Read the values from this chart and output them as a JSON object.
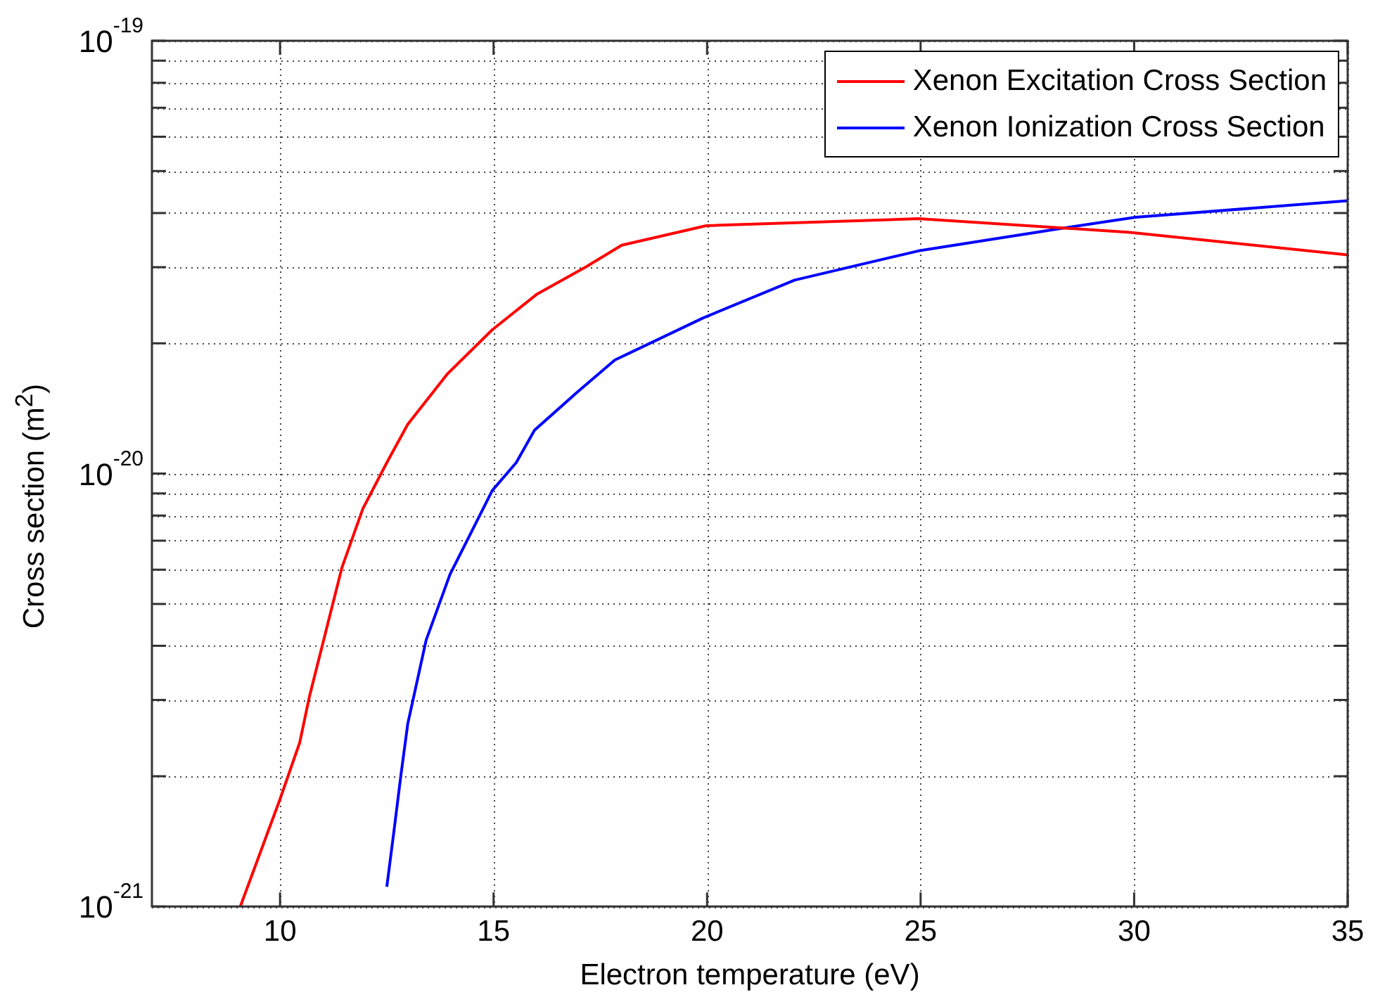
{
  "chart_data": {
    "type": "line",
    "xlabel": "Electron temperature (eV)",
    "ylabel": "Cross section (m$^{2}$)",
    "xlim": [
      7,
      35
    ],
    "xticks": [
      10,
      15,
      20,
      25,
      30,
      35
    ],
    "ylim": [
      1e-21,
      1e-19
    ],
    "yticks": [
      {
        "value": 1e-21,
        "label": "10$^{-21}$"
      },
      {
        "value": 2e-21,
        "label": null
      },
      {
        "value": 3e-21,
        "label": null
      },
      {
        "value": 4e-21,
        "label": null
      },
      {
        "value": 5e-21,
        "label": null
      },
      {
        "value": 6e-21,
        "label": null
      },
      {
        "value": 7e-21,
        "label": null
      },
      {
        "value": 8e-21,
        "label": null
      },
      {
        "value": 9e-21,
        "label": null
      },
      {
        "value": 1e-20,
        "label": "10$^{-20}$"
      },
      {
        "value": 2e-20,
        "label": null
      },
      {
        "value": 3e-20,
        "label": null
      },
      {
        "value": 4e-20,
        "label": null
      },
      {
        "value": 5e-20,
        "label": null
      },
      {
        "value": 6e-20,
        "label": null
      },
      {
        "value": 7e-20,
        "label": null
      },
      {
        "value": 8e-20,
        "label": null
      },
      {
        "value": 9e-20,
        "label": null
      },
      {
        "value": 1e-19,
        "label": "10$^{-19}$"
      }
    ],
    "log": "y",
    "grid": true,
    "legend": "top right",
    "marker": "none",
    "line_style": "solid",
    "series": [
      {
        "name": "Xenon Excitation Cross Section",
        "color": "#ff0000",
        "x": [
          9.07,
          10,
          10.46,
          10.69,
          11.45,
          11.94,
          12.5,
          12.99,
          13.92,
          14.97,
          16.02,
          17.18,
          18,
          19.98,
          24.95,
          29.9,
          35
        ],
        "values": [
          1e-21,
          1.77e-21,
          2.39e-21,
          3.06e-21,
          6.07e-21,
          8.3e-21,
          1.06e-20,
          1.3e-20,
          1.7e-20,
          2.15e-20,
          2.6e-20,
          3.01e-20,
          3.37e-20,
          3.74e-20,
          3.88e-20,
          3.61e-20,
          3.2e-20
        ]
      },
      {
        "name": "Xenon Ionization Cross Section",
        "color": "#0000ff",
        "x": [
          12.5,
          12.67,
          12.83,
          12.99,
          13.42,
          13.98,
          14.97,
          15.53,
          15.96,
          16.95,
          17.84,
          19.91,
          22.05,
          24.95,
          28.25,
          30.03,
          35
        ],
        "values": [
          1.11e-21,
          1.5e-21,
          2.01e-21,
          2.64e-21,
          4.12e-21,
          5.85e-21,
          9.14e-21,
          1.06e-20,
          1.26e-20,
          1.54e-20,
          1.83e-20,
          2.29e-20,
          2.8e-20,
          3.27e-20,
          3.68e-20,
          3.91e-20,
          4.27e-20
        ]
      }
    ]
  }
}
